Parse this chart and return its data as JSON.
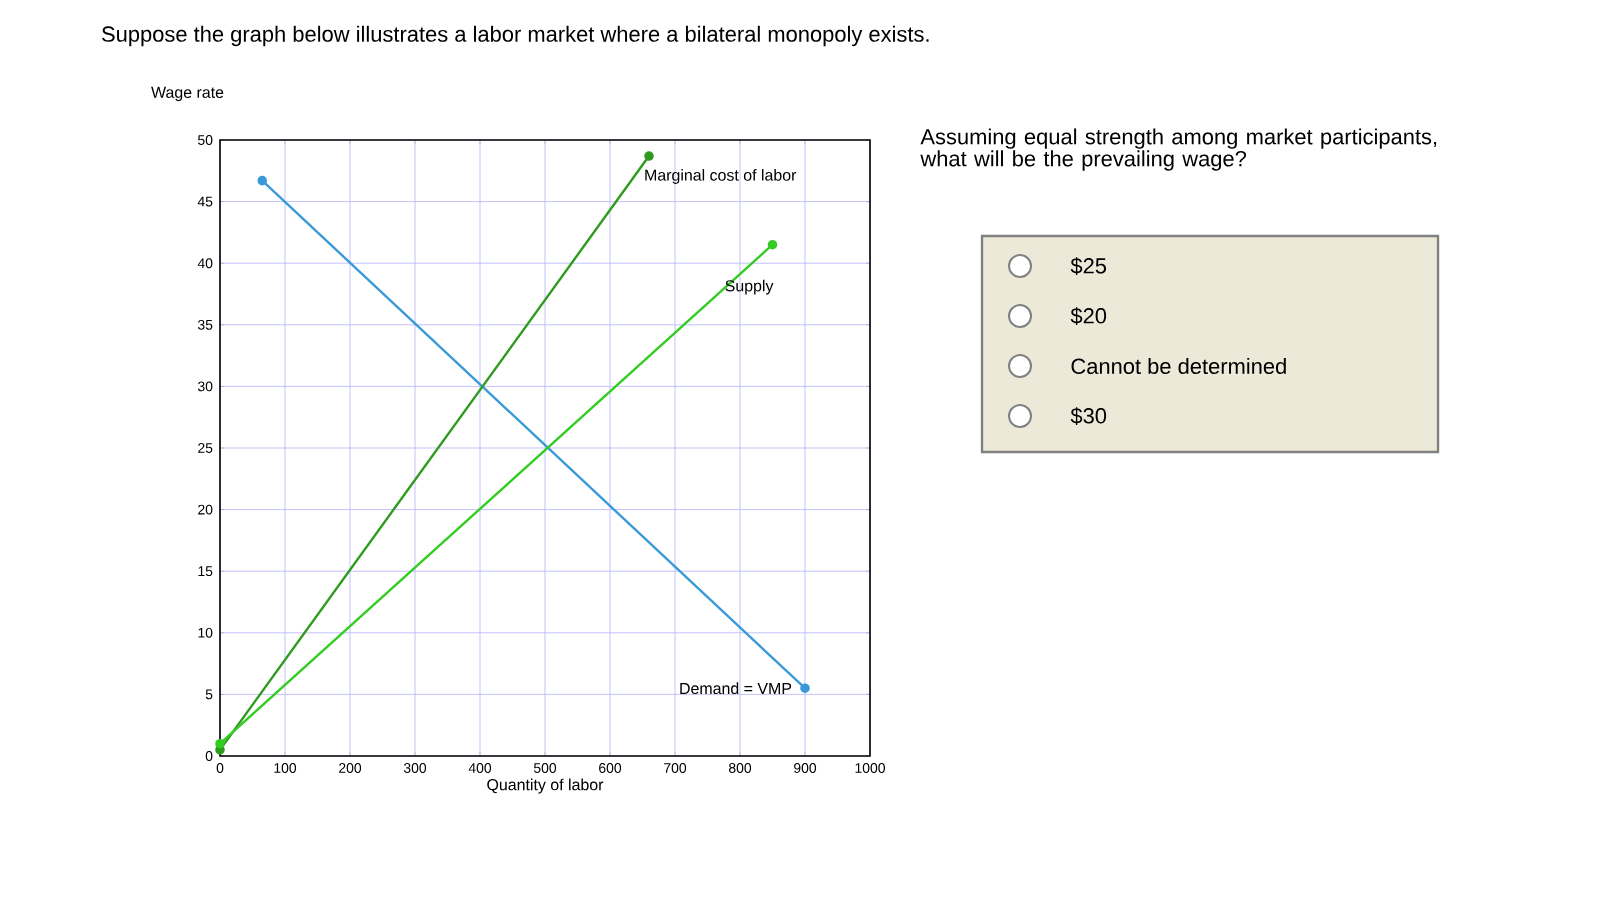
{
  "chart_data": [
    {
      "type": "line",
      "title": "Suppose the graph below illustrates a labor market where a bilateral monopoly exists.",
      "xlabel": "Quantity of labor",
      "ylabel": "Wage rate",
      "xlim": [
        0,
        1000
      ],
      "ylim": [
        0,
        50
      ],
      "xticks": [
        0,
        100,
        200,
        300,
        400,
        500,
        600,
        700,
        800,
        900,
        1000
      ],
      "yticks": [
        0,
        5,
        10,
        15,
        20,
        25,
        30,
        35,
        40,
        45,
        50
      ],
      "grid": true,
      "marker": "circle",
      "line_style": "solid",
      "series": [
        {
          "name": "Demand = VMP",
          "color": "#3a9ad9",
          "x": [
            65,
            900
          ],
          "values": [
            46.7,
            5.5
          ]
        },
        {
          "name": "Marginal cost of labor",
          "color": "#2e9a1e",
          "x": [
            0,
            660
          ],
          "values": [
            0.5,
            48.7
          ]
        },
        {
          "name": "Supply",
          "color": "#33cc22",
          "x": [
            0,
            850
          ],
          "values": [
            1,
            41.5
          ]
        }
      ]
    },
    {
      "type": "other",
      "title": "Assuming equal strength among market participants, what will be the prevailing wage?",
      "annotations": [
        "$25",
        "$20",
        "Cannot be determined",
        "$30"
      ]
    }
  ]
}
